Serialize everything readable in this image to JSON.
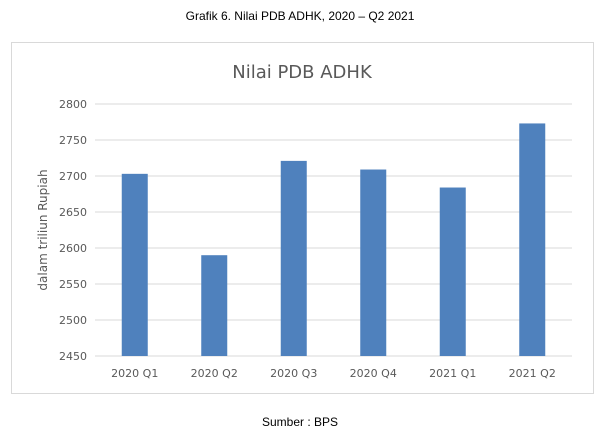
{
  "figure_caption": "Grafik 6. Nilai PDB ADHK, 2020 – Q2 2021",
  "source": "Sumber : BPS",
  "colors": {
    "bar": "#4f81bd",
    "grid": "#d9d9d9",
    "text": "#595959"
  },
  "chart_data": {
    "type": "bar",
    "title": "Nilai PDB ADHK",
    "xlabel": "",
    "ylabel": "dalam triliun Rupiah",
    "categories": [
      "2020 Q1",
      "2020 Q2",
      "2020 Q3",
      "2020 Q4",
      "2021 Q1",
      "2021 Q2"
    ],
    "values": [
      2703,
      2590,
      2721,
      2709,
      2684,
      2773
    ],
    "ylim": [
      2450,
      2800
    ],
    "yticks": [
      2450,
      2500,
      2550,
      2600,
      2650,
      2700,
      2750,
      2800
    ],
    "grid": true,
    "legend": "none"
  }
}
